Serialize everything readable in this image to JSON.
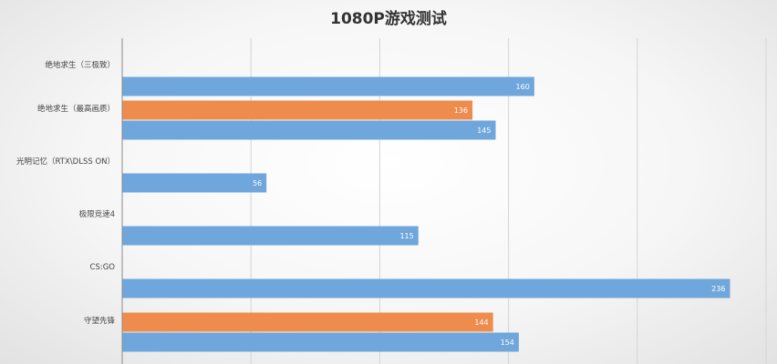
{
  "chart_data": {
    "type": "bar",
    "orientation": "horizontal",
    "title": "1080P游戏测试",
    "xlabel": "",
    "ylabel": "",
    "xlim": [
      0,
      250
    ],
    "grid": true,
    "legend": "none",
    "categories": [
      "绝地求生（三极致）",
      "绝地求生（最高画质）",
      "光明记忆（RTX\\DLSS ON）",
      "极限竞速4",
      "CS:GO",
      "守望先锋"
    ],
    "series": [
      {
        "color": "#ed8c4c",
        "values": [
          null,
          136,
          null,
          null,
          null,
          144
        ]
      },
      {
        "color": "#6fa6dc",
        "values": [
          160,
          145,
          56,
          115,
          236,
          154
        ]
      }
    ]
  }
}
